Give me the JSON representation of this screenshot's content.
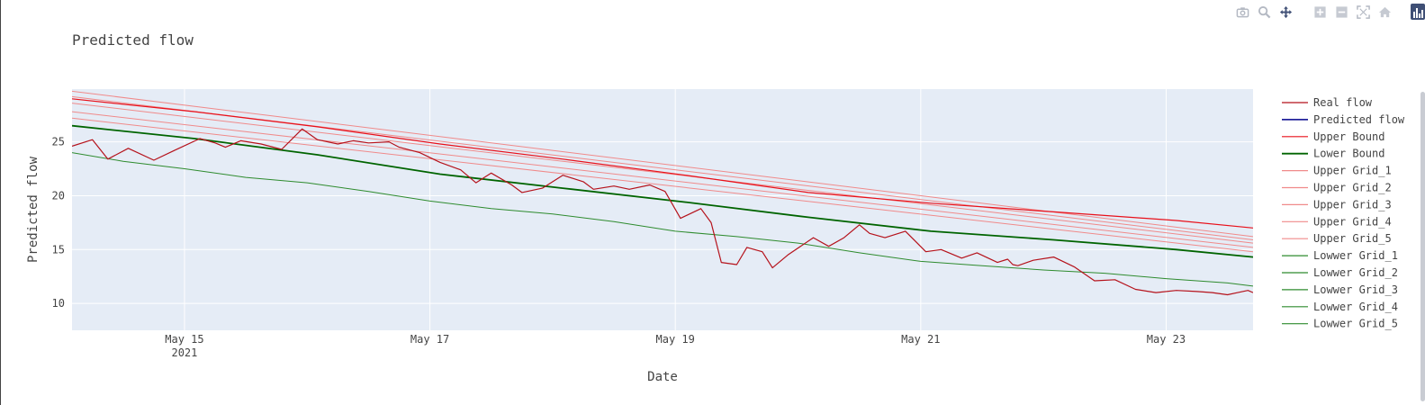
{
  "modebar": {
    "icons": [
      "camera-icon",
      "zoom-icon",
      "pan-icon",
      "zoom-in-icon",
      "zoom-out-icon",
      "autoscale-icon",
      "home-icon",
      "plotly-logo-icon"
    ]
  },
  "chart_data": {
    "type": "line",
    "title": "Predicted flow",
    "xlabel": "Date",
    "ylabel": "Predicted flow",
    "x_range": [
      "2021-05-14 02:00",
      "2021-05-23 17:00"
    ],
    "ylim": [
      7.5,
      29.9
    ],
    "x_ticks": [
      {
        "date": "2021-05-15",
        "label": "May 15",
        "sublabel": "2021"
      },
      {
        "date": "2021-05-17",
        "label": "May 17",
        "sublabel": ""
      },
      {
        "date": "2021-05-19",
        "label": "May 19",
        "sublabel": ""
      },
      {
        "date": "2021-05-21",
        "label": "May 21",
        "sublabel": ""
      },
      {
        "date": "2021-05-23",
        "label": "May 23",
        "sublabel": ""
      }
    ],
    "y_ticks": [
      10,
      15,
      20,
      25
    ],
    "grid": true,
    "legend_position": "right",
    "plot_bgcolor": "#e5ecf6",
    "series": [
      {
        "name": "Real flow",
        "color": "#b5121b",
        "width": 1.2,
        "x": [
          "2021-05-14 02:00",
          "2021-05-14 06:00",
          "2021-05-14 09:00",
          "2021-05-14 13:00",
          "2021-05-14 18:00",
          "2021-05-14 22:00",
          "2021-05-15 03:00",
          "2021-05-15 06:00",
          "2021-05-15 08:00",
          "2021-05-15 11:00",
          "2021-05-15 15:00",
          "2021-05-15 19:00",
          "2021-05-15 23:00",
          "2021-05-16 02:00",
          "2021-05-16 06:00",
          "2021-05-16 09:00",
          "2021-05-16 12:00",
          "2021-05-16 16:00",
          "2021-05-16 18:00",
          "2021-05-16 22:00",
          "2021-05-17 02:00",
          "2021-05-17 06:00",
          "2021-05-17 09:00",
          "2021-05-17 12:00",
          "2021-05-17 16:00",
          "2021-05-17 18:00",
          "2021-05-17 22:00",
          "2021-05-18 02:00",
          "2021-05-18 06:00",
          "2021-05-18 08:00",
          "2021-05-18 12:00",
          "2021-05-18 15:00",
          "2021-05-18 19:00",
          "2021-05-18 22:00",
          "2021-05-19 01:00",
          "2021-05-19 05:00",
          "2021-05-19 07:00",
          "2021-05-19 09:00",
          "2021-05-19 12:00",
          "2021-05-19 14:00",
          "2021-05-19 17:00",
          "2021-05-19 19:00",
          "2021-05-19 22:00",
          "2021-05-20 03:00",
          "2021-05-20 06:00",
          "2021-05-20 09:00",
          "2021-05-20 12:00",
          "2021-05-20 14:00",
          "2021-05-20 17:00",
          "2021-05-20 21:00",
          "2021-05-21 01:00",
          "2021-05-21 04:00",
          "2021-05-21 08:00",
          "2021-05-21 11:00",
          "2021-05-21 15:00",
          "2021-05-21 17:00",
          "2021-05-21 18:00",
          "2021-05-21 19:00",
          "2021-05-21 22:00",
          "2021-05-22 02:00",
          "2021-05-22 06:00",
          "2021-05-22 10:00",
          "2021-05-22 14:00",
          "2021-05-22 18:00",
          "2021-05-22 22:00",
          "2021-05-23 02:00",
          "2021-05-23 06:00",
          "2021-05-23 09:00",
          "2021-05-23 12:00",
          "2021-05-23 14:00",
          "2021-05-23 16:00",
          "2021-05-23 17:00"
        ],
        "y": [
          24.6,
          25.2,
          23.4,
          24.4,
          23.3,
          24.2,
          25.3,
          24.9,
          24.5,
          25.1,
          24.8,
          24.3,
          26.2,
          25.2,
          24.8,
          25.1,
          24.9,
          25.0,
          24.5,
          24.0,
          23.1,
          22.4,
          21.2,
          22.1,
          21.0,
          20.3,
          20.7,
          21.9,
          21.3,
          20.6,
          20.9,
          20.6,
          21.0,
          20.4,
          17.9,
          18.8,
          17.5,
          13.8,
          13.6,
          15.2,
          14.8,
          13.3,
          14.5,
          16.1,
          15.3,
          16.1,
          17.3,
          16.5,
          16.1,
          16.7,
          14.8,
          15.0,
          14.2,
          14.7,
          13.8,
          14.1,
          13.6,
          13.5,
          14.0,
          14.3,
          13.4,
          12.1,
          12.2,
          11.3,
          11.0,
          11.2,
          11.1,
          11.0,
          10.8,
          11.0,
          11.2,
          11.0
        ]
      },
      {
        "name": "Predicted flow",
        "color": "#00008b",
        "width": 1.5,
        "hidden_line": true,
        "x": [],
        "y": []
      },
      {
        "name": "Upper Bound",
        "color": "#e8101a",
        "width": 1.2,
        "x": [
          "2021-05-14 02:00",
          "2021-05-15 02:00",
          "2021-05-16 02:00",
          "2021-05-17 02:00",
          "2021-05-18 02:00",
          "2021-05-19 02:00",
          "2021-05-20 02:00",
          "2021-05-21 02:00",
          "2021-05-22 02:00",
          "2021-05-23 02:00",
          "2021-05-23 17:00"
        ],
        "y": [
          29.0,
          27.8,
          26.4,
          24.8,
          23.4,
          21.9,
          20.3,
          19.3,
          18.5,
          17.7,
          17.0
        ]
      },
      {
        "name": "Lower Bound",
        "color": "#006400",
        "width": 1.8,
        "x": [
          "2021-05-14 02:00",
          "2021-05-15 02:00",
          "2021-05-16 02:00",
          "2021-05-17 02:00",
          "2021-05-18 02:00",
          "2021-05-19 02:00",
          "2021-05-20 02:00",
          "2021-05-21 02:00",
          "2021-05-22 02:00",
          "2021-05-23 02:00",
          "2021-05-23 17:00"
        ],
        "y": [
          26.5,
          25.3,
          23.8,
          22.0,
          20.7,
          19.4,
          18.0,
          16.7,
          15.9,
          15.0,
          14.3
        ]
      },
      {
        "name": "Upper Grid_1",
        "color": "#f08a8a",
        "width": 1.0,
        "x": [
          "2021-05-14 02:00",
          "2021-05-23 17:00"
        ],
        "y": [
          29.7,
          16.2
        ]
      },
      {
        "name": "Upper Grid_2",
        "color": "#f08a8a",
        "width": 1.0,
        "x": [
          "2021-05-14 02:00",
          "2021-05-23 17:00"
        ],
        "y": [
          29.2,
          15.9
        ]
      },
      {
        "name": "Upper Grid_3",
        "color": "#f08a8a",
        "width": 1.0,
        "x": [
          "2021-05-14 02:00",
          "2021-05-23 17:00"
        ],
        "y": [
          28.6,
          15.6
        ]
      },
      {
        "name": "Upper Grid_4",
        "color": "#f08a8a",
        "width": 1.0,
        "x": [
          "2021-05-14 02:00",
          "2021-05-23 17:00"
        ],
        "y": [
          27.8,
          15.2
        ]
      },
      {
        "name": "Upper Grid_5",
        "color": "#f08a8a",
        "width": 1.0,
        "x": [
          "2021-05-14 02:00",
          "2021-05-23 17:00"
        ],
        "y": [
          27.2,
          14.8
        ]
      },
      {
        "name": "Lowwer Grid_1",
        "color": "#2e8b2e",
        "width": 1.0,
        "x": [
          "2021-05-14 02:00",
          "2021-05-14 12:00",
          "2021-05-15 00:00",
          "2021-05-15 12:00",
          "2021-05-16 00:00",
          "2021-05-16 12:00",
          "2021-05-17 00:00",
          "2021-05-17 12:00",
          "2021-05-18 00:00",
          "2021-05-18 12:00",
          "2021-05-19 00:00",
          "2021-05-19 12:00",
          "2021-05-20 00:00",
          "2021-05-20 12:00",
          "2021-05-21 00:00",
          "2021-05-21 12:00",
          "2021-05-22 00:00",
          "2021-05-22 12:00",
          "2021-05-23 00:00",
          "2021-05-23 12:00",
          "2021-05-23 17:00"
        ],
        "y": [
          24.0,
          23.2,
          22.5,
          21.7,
          21.2,
          20.4,
          19.5,
          18.8,
          18.3,
          17.6,
          16.7,
          16.2,
          15.6,
          14.7,
          13.9,
          13.5,
          13.1,
          12.8,
          12.3,
          11.9,
          11.6
        ]
      },
      {
        "name": "Lowwer Grid_2",
        "color": "#2e8b2e",
        "width": 0.8,
        "x": [],
        "y": []
      },
      {
        "name": "Lowwer Grid_3",
        "color": "#2e8b2e",
        "width": 0.8,
        "x": [],
        "y": []
      },
      {
        "name": "Lowwer Grid_4",
        "color": "#2e8b2e",
        "width": 0.8,
        "x": [],
        "y": []
      },
      {
        "name": "Lowwer Grid_5",
        "color": "#2e8b2e",
        "width": 0.8,
        "x": [],
        "y": []
      }
    ]
  }
}
